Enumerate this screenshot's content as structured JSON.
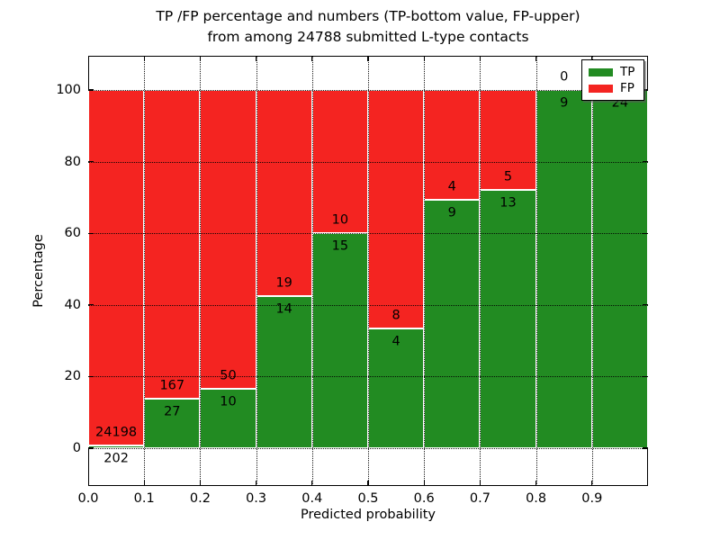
{
  "title": {
    "line1": "TP /FP percentage and numbers (TP-bottom value, FP-upper)",
    "line2": "from among 24788 submitted L-type contacts"
  },
  "axes": {
    "xlabel": "Predicted probability",
    "ylabel": "Percentage",
    "xtick_labels": [
      "0.0",
      "0.1",
      "0.2",
      "0.3",
      "0.4",
      "0.5",
      "0.6",
      "0.7",
      "0.8",
      "0.9"
    ],
    "ytick_labels": [
      "0",
      "20",
      "40",
      "60",
      "80",
      "100"
    ],
    "yticks": [
      0,
      20,
      40,
      60,
      80,
      100
    ]
  },
  "legend": {
    "position": "upper right",
    "items": [
      {
        "label": "TP",
        "color": "#228b22"
      },
      {
        "label": "FP",
        "color": "#f42421"
      }
    ]
  },
  "chart_data": {
    "type": "bar",
    "stacked": true,
    "normalized_to_percent": true,
    "title": "TP /FP percentage and numbers (TP-bottom value, FP-upper) from among 24788 submitted L-type contacts",
    "xlabel": "Predicted probability",
    "ylabel": "Percentage",
    "total_contacts": 24788,
    "bin_edges": [
      0.0,
      0.1,
      0.2,
      0.3,
      0.4,
      0.5,
      0.6,
      0.7,
      0.8,
      0.9,
      1.0
    ],
    "categories": [
      "0.0-0.1",
      "0.1-0.2",
      "0.2-0.3",
      "0.3-0.4",
      "0.4-0.5",
      "0.5-0.6",
      "0.6-0.7",
      "0.7-0.8",
      "0.8-0.9",
      "0.9-1.0"
    ],
    "series": [
      {
        "name": "TP",
        "color": "#228b22",
        "counts": [
          202,
          27,
          10,
          14,
          15,
          4,
          9,
          13,
          9,
          24
        ]
      },
      {
        "name": "FP",
        "color": "#f42421",
        "counts": [
          24198,
          167,
          50,
          19,
          10,
          8,
          4,
          5,
          0,
          0
        ]
      }
    ],
    "tp_percent": [
      0.83,
      13.92,
      16.67,
      42.42,
      60.0,
      33.33,
      69.23,
      72.22,
      100.0,
      100.0
    ],
    "xlim": [
      0.0,
      1.0
    ],
    "ylim": [
      -10.6,
      109.6
    ],
    "grid": true,
    "grid_style": "dotted",
    "legend_position": "upper right"
  }
}
